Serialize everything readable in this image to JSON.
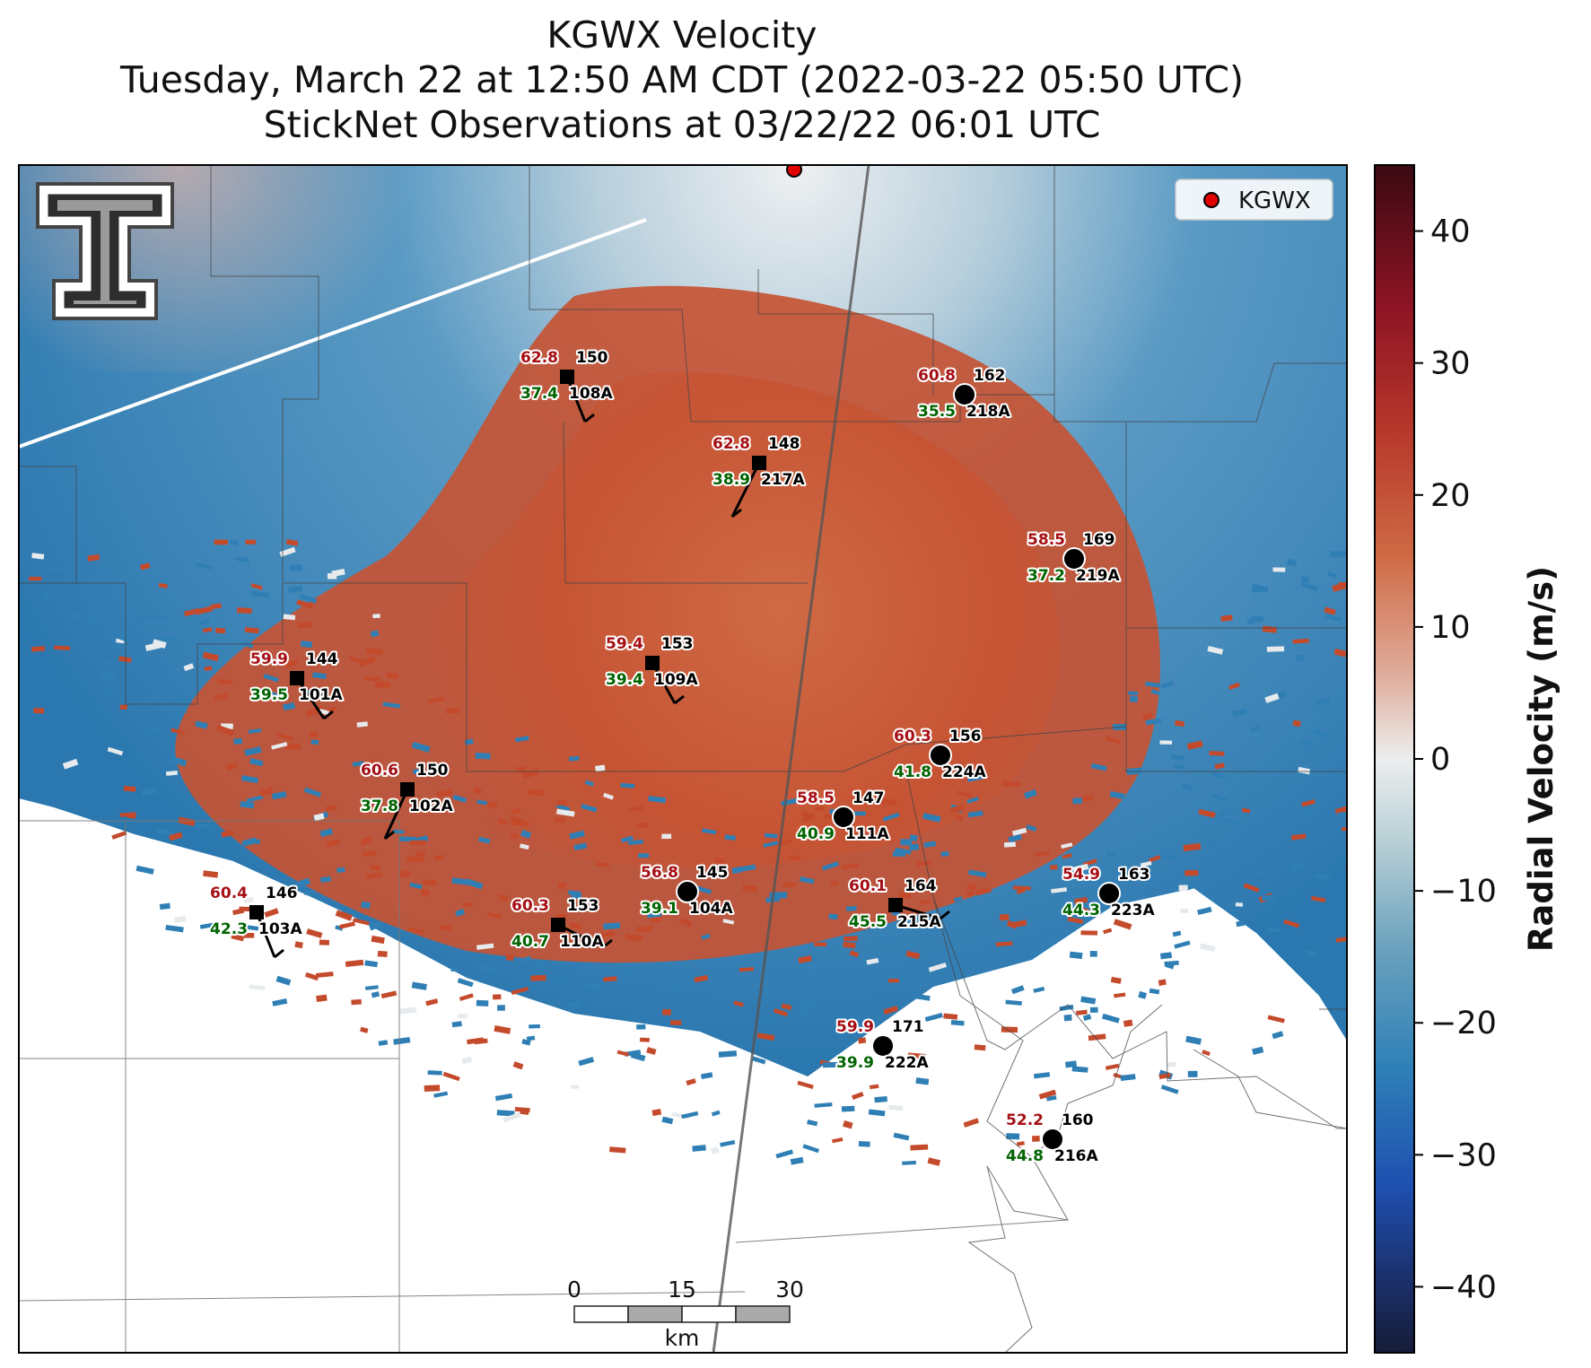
{
  "title": {
    "line1": "KGWX Velocity",
    "line2": "Tuesday, March 22 at 12:50 AM CDT (2022-03-22 05:50 UTC)",
    "line3": "StickNet Observations at 03/22/22 06:01 UTC"
  },
  "legend": {
    "label": "KGWX",
    "marker_color": "#e00000"
  },
  "colorbar": {
    "label": "Radial Velocity (m/s)",
    "ticks": [
      "40",
      "30",
      "20",
      "10",
      "0",
      "−10",
      "−20",
      "−30",
      "−40"
    ],
    "range": [
      -45,
      45
    ]
  },
  "scale_bar": {
    "ticks": [
      "0",
      "15",
      "30"
    ],
    "unit": "km"
  },
  "colors": {
    "outbound": "#c44a2c",
    "inbound": "#2f7fb5",
    "near_zero": "#e6eaec"
  },
  "stations": [
    {
      "id": "108A",
      "temp": "62.8",
      "dew": "37.4",
      "pres": "150",
      "marker": "square"
    },
    {
      "id": "218A",
      "temp": "60.8",
      "dew": "35.5",
      "pres": "162",
      "marker": "circle"
    },
    {
      "id": "217A",
      "temp": "62.8",
      "dew": "38.9",
      "pres": "148",
      "marker": "square"
    },
    {
      "id": "219A",
      "temp": "58.5",
      "dew": "37.2",
      "pres": "169",
      "marker": "circle"
    },
    {
      "id": "101A",
      "temp": "59.9",
      "dew": "39.5",
      "pres": "144",
      "marker": "square"
    },
    {
      "id": "109A",
      "temp": "59.4",
      "dew": "39.4",
      "pres": "153",
      "marker": "square"
    },
    {
      "id": "224A",
      "temp": "60.3",
      "dew": "41.8",
      "pres": "156",
      "marker": "circle"
    },
    {
      "id": "102A",
      "temp": "60.6",
      "dew": "37.8",
      "pres": "150",
      "marker": "square"
    },
    {
      "id": "111A",
      "temp": "58.5",
      "dew": "40.9",
      "pres": "147",
      "marker": "circle"
    },
    {
      "id": "103A",
      "temp": "60.4",
      "dew": "42.3",
      "pres": "146",
      "marker": "square"
    },
    {
      "id": "104A",
      "temp": "56.8",
      "dew": "39.1",
      "pres": "145",
      "marker": "circle"
    },
    {
      "id": "110A",
      "temp": "60.3",
      "dew": "40.7",
      "pres": "153",
      "marker": "square"
    },
    {
      "id": "215A",
      "temp": "60.1",
      "dew": "45.5",
      "pres": "164",
      "marker": "square"
    },
    {
      "id": "223A",
      "temp": "54.9",
      "dew": "44.3",
      "pres": "163",
      "marker": "circle"
    },
    {
      "id": "222A",
      "temp": "59.9",
      "dew": "39.9",
      "pres": "171",
      "marker": "circle"
    },
    {
      "id": "216A",
      "temp": "52.2",
      "dew": "44.8",
      "pres": "160",
      "marker": "circle"
    }
  ]
}
